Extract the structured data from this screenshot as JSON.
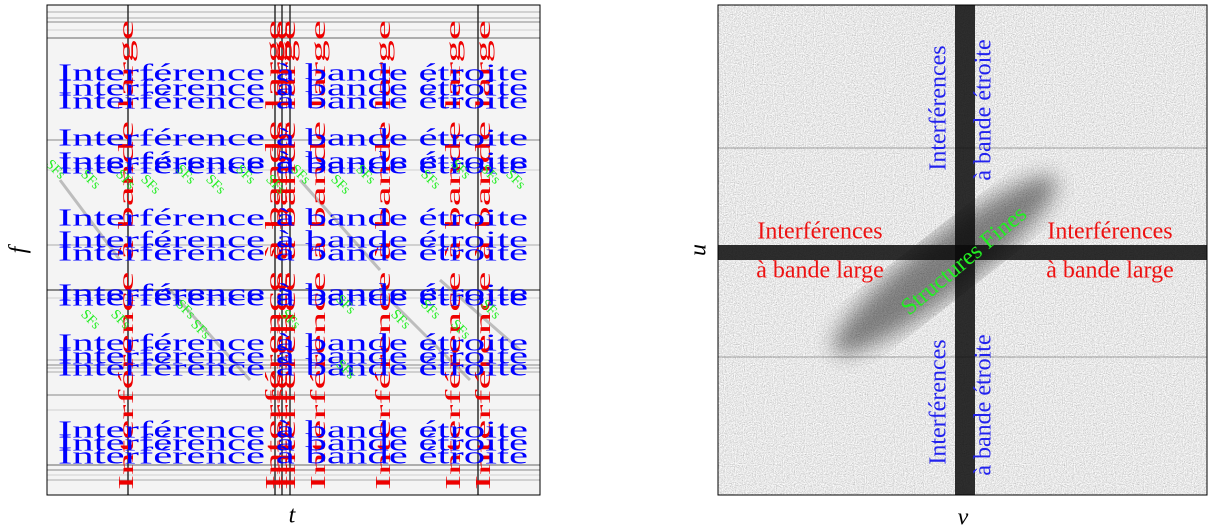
{
  "left_panel": {
    "x_label": "t",
    "y_label": "f",
    "narrowband_label": "Interférence à bande étroite",
    "wideband_label": "Interférence à bande large",
    "fine_structure_label": "SFs"
  },
  "right_panel": {
    "x_label": "v",
    "y_label": "u",
    "narrowband_label": [
      "Interférences",
      "à bande étroite"
    ],
    "wideband_label": [
      "Interférences",
      "à bande large"
    ],
    "fine_structure_label": "Structures Fines"
  }
}
